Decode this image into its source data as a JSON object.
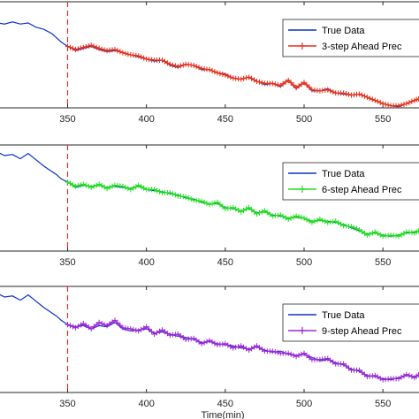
{
  "chart_data": [
    {
      "type": "line",
      "xlabel": "",
      "xlim": [
        306,
        574
      ],
      "xticks": [
        350,
        400,
        450,
        500,
        550
      ],
      "vline_x": 350,
      "legend": "top-right",
      "colors": {
        "true": "#0b32c8",
        "pred": "#e8311a",
        "vline": "#e8311a"
      },
      "series": [
        {
          "name": "True Data",
          "x": [
            306,
            310,
            315,
            320,
            325,
            330,
            335,
            340,
            343,
            346,
            350,
            355,
            360,
            365,
            370,
            375,
            380,
            385,
            390,
            395,
            400,
            405,
            410,
            415,
            420,
            425,
            430,
            435,
            440,
            445,
            450,
            455,
            460,
            465,
            470,
            475,
            480,
            485,
            490,
            495,
            500,
            505,
            510,
            515,
            520,
            525,
            530,
            535,
            540,
            545,
            550,
            555,
            560,
            565,
            570,
            574
          ],
          "y": [
            0.8,
            0.79,
            0.81,
            0.79,
            0.8,
            0.76,
            0.74,
            0.7,
            0.66,
            0.62,
            0.58,
            0.54,
            0.56,
            0.58,
            0.55,
            0.53,
            0.54,
            0.52,
            0.5,
            0.48,
            0.46,
            0.44,
            0.45,
            0.4,
            0.38,
            0.41,
            0.4,
            0.36,
            0.36,
            0.33,
            0.32,
            0.28,
            0.27,
            0.29,
            0.25,
            0.22,
            0.23,
            0.2,
            0.26,
            0.18,
            0.24,
            0.16,
            0.16,
            0.18,
            0.14,
            0.13,
            0.12,
            0.13,
            0.1,
            0.07,
            0.04,
            0.02,
            0.01,
            0.04,
            0.07,
            0.09
          ]
        },
        {
          "name": "3-step Ahead Prec",
          "x": [
            350,
            355,
            360,
            365,
            370,
            375,
            380,
            385,
            390,
            395,
            400,
            405,
            410,
            415,
            420,
            425,
            430,
            435,
            440,
            445,
            450,
            455,
            460,
            465,
            470,
            475,
            480,
            485,
            490,
            495,
            500,
            505,
            510,
            515,
            520,
            525,
            530,
            535,
            540,
            545,
            550,
            555,
            560,
            565,
            570,
            574
          ],
          "y": [
            0.58,
            0.55,
            0.57,
            0.59,
            0.56,
            0.54,
            0.55,
            0.52,
            0.5,
            0.49,
            0.46,
            0.45,
            0.45,
            0.41,
            0.39,
            0.41,
            0.4,
            0.37,
            0.36,
            0.33,
            0.31,
            0.28,
            0.27,
            0.29,
            0.25,
            0.23,
            0.23,
            0.21,
            0.26,
            0.19,
            0.24,
            0.17,
            0.16,
            0.17,
            0.14,
            0.14,
            0.12,
            0.13,
            0.1,
            0.07,
            0.04,
            0.02,
            0.02,
            0.04,
            0.07,
            0.09
          ]
        }
      ]
    },
    {
      "type": "line",
      "xlabel": "",
      "xlim": [
        306,
        574
      ],
      "xticks": [
        350,
        400,
        450,
        500,
        550
      ],
      "vline_x": 350,
      "legend": "top-right",
      "colors": {
        "true": "#0b32c8",
        "pred": "#22e01e",
        "vline": "#e8311a"
      },
      "series": [
        {
          "name": "True Data",
          "x": [
            306,
            310,
            315,
            320,
            325,
            330,
            335,
            340,
            343,
            346,
            350,
            355,
            360,
            365,
            370,
            375,
            380,
            385,
            390,
            395,
            400,
            405,
            410,
            415,
            420,
            425,
            430,
            435,
            440,
            445,
            450,
            455,
            460,
            465,
            470,
            475,
            480,
            485,
            490,
            495,
            500,
            505,
            510,
            515,
            520,
            525,
            530,
            535,
            540,
            545,
            550,
            555,
            560,
            565,
            570,
            574
          ],
          "y": [
            0.93,
            0.9,
            0.91,
            0.87,
            0.92,
            0.86,
            0.8,
            0.75,
            0.72,
            0.68,
            0.65,
            0.6,
            0.62,
            0.61,
            0.62,
            0.6,
            0.61,
            0.6,
            0.59,
            0.61,
            0.58,
            0.57,
            0.56,
            0.54,
            0.53,
            0.5,
            0.49,
            0.46,
            0.44,
            0.45,
            0.41,
            0.4,
            0.38,
            0.4,
            0.36,
            0.37,
            0.34,
            0.33,
            0.31,
            0.32,
            0.31,
            0.28,
            0.29,
            0.28,
            0.27,
            0.25,
            0.22,
            0.19,
            0.16,
            0.17,
            0.15,
            0.14,
            0.15,
            0.17,
            0.18,
            0.19
          ]
        },
        {
          "name": "6-step Ahead Prec",
          "x": [
            350,
            355,
            360,
            365,
            370,
            375,
            380,
            385,
            390,
            395,
            400,
            405,
            410,
            415,
            420,
            425,
            430,
            435,
            440,
            445,
            450,
            455,
            460,
            465,
            470,
            475,
            480,
            485,
            490,
            495,
            500,
            505,
            510,
            515,
            520,
            525,
            530,
            535,
            540,
            545,
            550,
            555,
            560,
            565,
            570,
            574
          ],
          "y": [
            0.65,
            0.61,
            0.63,
            0.6,
            0.63,
            0.59,
            0.62,
            0.61,
            0.58,
            0.62,
            0.58,
            0.58,
            0.55,
            0.55,
            0.52,
            0.51,
            0.48,
            0.47,
            0.44,
            0.46,
            0.4,
            0.41,
            0.37,
            0.41,
            0.35,
            0.38,
            0.33,
            0.34,
            0.3,
            0.33,
            0.31,
            0.27,
            0.3,
            0.27,
            0.28,
            0.24,
            0.23,
            0.2,
            0.15,
            0.18,
            0.14,
            0.15,
            0.14,
            0.18,
            0.17,
            0.2
          ]
        }
      ]
    },
    {
      "type": "line",
      "xlabel": "Time(min)",
      "xlim": [
        306,
        574
      ],
      "xticks": [
        350,
        400,
        450,
        500,
        550
      ],
      "vline_x": 350,
      "legend": "top-right",
      "colors": {
        "true": "#0b32c8",
        "pred": "#9b2ad6",
        "vline": "#e8311a"
      },
      "series": [
        {
          "name": "True Data",
          "x": [
            306,
            310,
            315,
            320,
            325,
            330,
            335,
            340,
            343,
            346,
            350,
            355,
            360,
            365,
            370,
            375,
            380,
            385,
            390,
            395,
            400,
            405,
            410,
            415,
            420,
            425,
            430,
            435,
            440,
            445,
            450,
            455,
            460,
            465,
            470,
            475,
            480,
            485,
            490,
            495,
            500,
            505,
            510,
            515,
            520,
            525,
            530,
            535,
            540,
            545,
            550,
            555,
            560,
            565,
            570,
            574
          ],
          "y": [
            0.93,
            0.9,
            0.91,
            0.87,
            0.92,
            0.86,
            0.8,
            0.75,
            0.72,
            0.68,
            0.64,
            0.62,
            0.63,
            0.6,
            0.63,
            0.62,
            0.66,
            0.6,
            0.58,
            0.59,
            0.6,
            0.56,
            0.57,
            0.55,
            0.53,
            0.52,
            0.5,
            0.47,
            0.48,
            0.46,
            0.45,
            0.44,
            0.42,
            0.41,
            0.43,
            0.4,
            0.38,
            0.39,
            0.36,
            0.35,
            0.36,
            0.33,
            0.3,
            0.31,
            0.28,
            0.26,
            0.22,
            0.2,
            0.16,
            0.15,
            0.13,
            0.12,
            0.14,
            0.16,
            0.15,
            0.17
          ]
        },
        {
          "name": "9-step Ahead Prec",
          "x": [
            350,
            355,
            360,
            365,
            370,
            375,
            380,
            385,
            390,
            395,
            400,
            405,
            410,
            415,
            420,
            425,
            430,
            435,
            440,
            445,
            450,
            455,
            460,
            465,
            470,
            475,
            480,
            485,
            490,
            495,
            500,
            505,
            510,
            515,
            520,
            525,
            530,
            535,
            540,
            545,
            550,
            555,
            560,
            565,
            570,
            574
          ],
          "y": [
            0.64,
            0.61,
            0.65,
            0.6,
            0.66,
            0.63,
            0.68,
            0.61,
            0.6,
            0.58,
            0.62,
            0.55,
            0.59,
            0.54,
            0.55,
            0.5,
            0.51,
            0.46,
            0.49,
            0.45,
            0.46,
            0.42,
            0.44,
            0.4,
            0.44,
            0.39,
            0.39,
            0.37,
            0.37,
            0.34,
            0.37,
            0.31,
            0.31,
            0.32,
            0.27,
            0.27,
            0.21,
            0.21,
            0.15,
            0.16,
            0.12,
            0.13,
            0.13,
            0.17,
            0.14,
            0.18
          ]
        }
      ]
    }
  ]
}
